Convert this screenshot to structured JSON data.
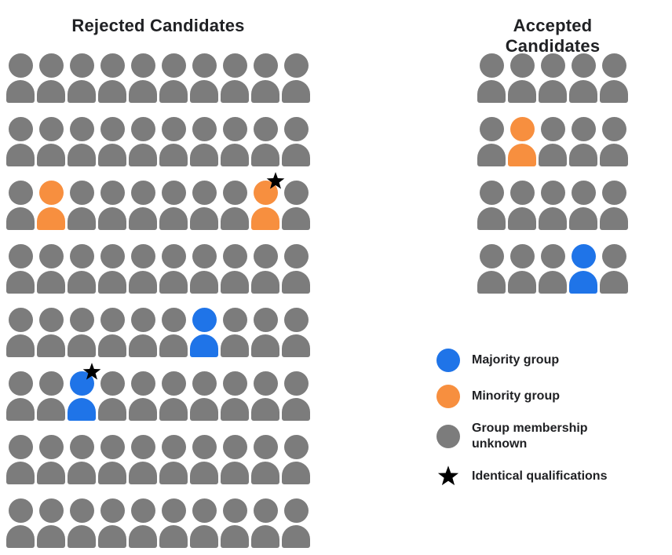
{
  "titles": {
    "rejected": "Rejected Candidates",
    "accepted": "Accepted Candidates"
  },
  "colors": {
    "majority": "#1f74e8",
    "minority": "#f78f3f",
    "unknown": "#7c7c7c",
    "star": "#000000",
    "text": "#202124",
    "background": "#ffffff"
  },
  "legend": {
    "items": [
      {
        "marker": "circle",
        "group": "majority",
        "label": "Majority group"
      },
      {
        "marker": "circle",
        "group": "minority",
        "label": "Minority group"
      },
      {
        "marker": "circle",
        "group": "unknown",
        "label": "Group membership\nunknown"
      },
      {
        "marker": "star",
        "group": "star",
        "label": "Identical qualifications"
      }
    ]
  },
  "chart_data": {
    "type": "pictogram",
    "description": "Unit chart of hiring outcomes: each person icon is one candidate; color encodes group membership, star marks identical qualifications.",
    "panels": [
      {
        "id": "rejected",
        "title": "Rejected Candidates",
        "rows": 8,
        "cols": 10,
        "total_icons": 80,
        "counts": {
          "majority": 2,
          "minority": 2,
          "unknown": 76,
          "starred": 2
        },
        "special_icons": [
          {
            "row": 2,
            "col": 1,
            "group": "minority",
            "star": false
          },
          {
            "row": 2,
            "col": 8,
            "group": "minority",
            "star": true
          },
          {
            "row": 4,
            "col": 6,
            "group": "majority",
            "star": false
          },
          {
            "row": 5,
            "col": 2,
            "group": "majority",
            "star": true
          }
        ]
      },
      {
        "id": "accepted",
        "title": "Accepted Candidates",
        "rows": 4,
        "cols": 5,
        "total_icons": 20,
        "counts": {
          "majority": 1,
          "minority": 1,
          "unknown": 18,
          "starred": 0
        },
        "special_icons": [
          {
            "row": 1,
            "col": 1,
            "group": "minority",
            "star": false
          },
          {
            "row": 3,
            "col": 3,
            "group": "majority",
            "star": false
          }
        ]
      }
    ],
    "legend_position": "right-bottom",
    "grid": false
  }
}
